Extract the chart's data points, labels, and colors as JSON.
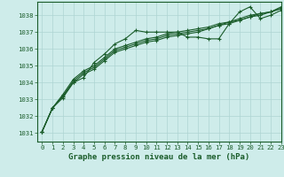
{
  "background_color": "#ceecea",
  "grid_color": "#add5d2",
  "line_color": "#1a5c2a",
  "title": "Graphe pression niveau de la mer (hPa)",
  "xlim": [
    -0.5,
    23
  ],
  "ylim": [
    1030.5,
    1038.8
  ],
  "yticks": [
    1031,
    1032,
    1033,
    1034,
    1035,
    1036,
    1037,
    1038
  ],
  "xticks": [
    0,
    1,
    2,
    3,
    4,
    5,
    6,
    7,
    8,
    9,
    10,
    11,
    12,
    13,
    14,
    15,
    16,
    17,
    18,
    19,
    20,
    21,
    22,
    23
  ],
  "series": [
    [
      1031.1,
      1032.5,
      1033.1,
      1034.0,
      1034.3,
      1035.2,
      1035.7,
      1036.3,
      1036.6,
      1037.1,
      1037.0,
      1037.0,
      1037.0,
      1037.0,
      1036.7,
      1036.7,
      1036.6,
      1036.6,
      1037.5,
      1038.2,
      1038.5,
      1037.8,
      1038.0,
      1038.3
    ],
    [
      1031.1,
      1032.5,
      1033.2,
      1034.0,
      1034.5,
      1034.8,
      1035.3,
      1035.8,
      1036.0,
      1036.2,
      1036.4,
      1036.5,
      1036.7,
      1036.8,
      1036.9,
      1037.0,
      1037.2,
      1037.4,
      1037.5,
      1037.7,
      1037.9,
      1038.0,
      1038.2,
      1038.4
    ],
    [
      1031.1,
      1032.5,
      1033.2,
      1034.1,
      1034.6,
      1034.9,
      1035.4,
      1035.9,
      1036.1,
      1036.3,
      1036.5,
      1036.6,
      1036.8,
      1036.9,
      1037.0,
      1037.1,
      1037.2,
      1037.4,
      1037.6,
      1037.7,
      1037.9,
      1038.1,
      1038.2,
      1038.4
    ],
    [
      1031.1,
      1032.5,
      1033.3,
      1034.2,
      1034.7,
      1035.0,
      1035.5,
      1036.0,
      1036.2,
      1036.4,
      1036.6,
      1036.7,
      1036.9,
      1037.0,
      1037.1,
      1037.2,
      1037.3,
      1037.5,
      1037.6,
      1037.8,
      1038.0,
      1038.1,
      1038.2,
      1038.5
    ]
  ],
  "title_fontsize": 6.5,
  "tick_fontsize": 5.2
}
